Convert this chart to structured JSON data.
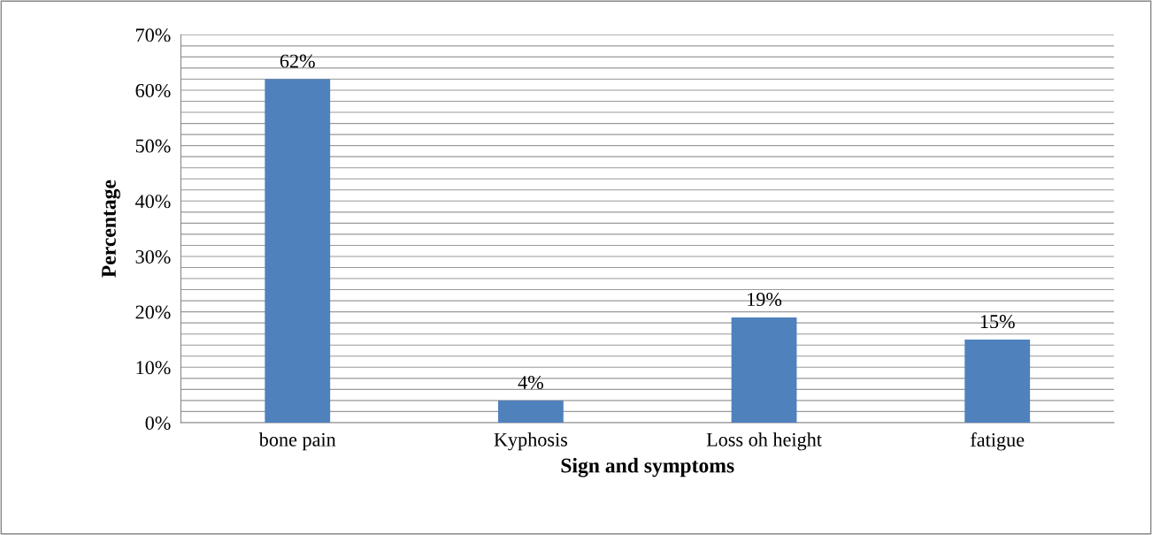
{
  "chart_data": {
    "type": "bar",
    "xlabel": "Sign and symptoms",
    "ylabel": "Percentage",
    "categories": [
      "bone pain",
      "Kyphosis",
      "Loss oh height",
      "fatigue"
    ],
    "values": [
      62,
      4,
      19,
      15
    ],
    "value_labels": [
      "62%",
      "4%",
      "19%",
      "15%"
    ],
    "color": "#4f81bd",
    "ylim": [
      0,
      70
    ],
    "yticks": [
      {
        "value": 0,
        "label": "0%"
      },
      {
        "value": 2,
        "label": null
      },
      {
        "value": 4,
        "label": null
      },
      {
        "value": 6,
        "label": null
      },
      {
        "value": 8,
        "label": null
      },
      {
        "value": 10,
        "label": "10%"
      },
      {
        "value": 12,
        "label": null
      },
      {
        "value": 14,
        "label": null
      },
      {
        "value": 16,
        "label": null
      },
      {
        "value": 18,
        "label": null
      },
      {
        "value": 20,
        "label": "20%"
      },
      {
        "value": 22,
        "label": null
      },
      {
        "value": 24,
        "label": null
      },
      {
        "value": 26,
        "label": null
      },
      {
        "value": 28,
        "label": null
      },
      {
        "value": 30,
        "label": "30%"
      },
      {
        "value": 32,
        "label": null
      },
      {
        "value": 34,
        "label": null
      },
      {
        "value": 36,
        "label": null
      },
      {
        "value": 38,
        "label": null
      },
      {
        "value": 40,
        "label": "40%"
      },
      {
        "value": 42,
        "label": null
      },
      {
        "value": 44,
        "label": null
      },
      {
        "value": 46,
        "label": null
      },
      {
        "value": 48,
        "label": null
      },
      {
        "value": 50,
        "label": "50%"
      },
      {
        "value": 52,
        "label": null
      },
      {
        "value": 54,
        "label": null
      },
      {
        "value": 56,
        "label": null
      },
      {
        "value": 58,
        "label": null
      },
      {
        "value": 60,
        "label": "60%"
      },
      {
        "value": 62,
        "label": null
      },
      {
        "value": 64,
        "label": null
      },
      {
        "value": 66,
        "label": null
      },
      {
        "value": 68,
        "label": null
      },
      {
        "value": 70,
        "label": "70%"
      }
    ],
    "grid": "y"
  }
}
